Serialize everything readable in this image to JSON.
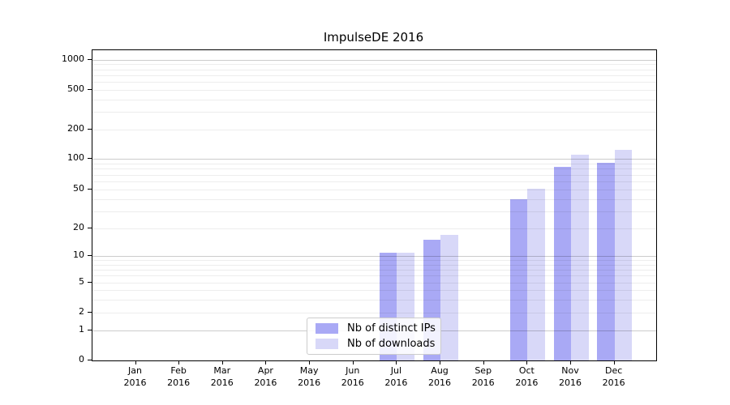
{
  "chart_data": {
    "type": "bar",
    "title": "ImpulseDE 2016",
    "categories": [
      "Jan",
      "Feb",
      "Mar",
      "Apr",
      "May",
      "Jun",
      "Jul",
      "Aug",
      "Sep",
      "Oct",
      "Nov",
      "Dec"
    ],
    "year": "2016",
    "series": [
      {
        "name": "Nb of distinct IPs",
        "color": "#a9a9f5",
        "values": [
          0,
          0,
          0,
          0,
          0,
          0,
          11,
          15,
          0,
          40,
          83,
          92
        ]
      },
      {
        "name": "Nb of downloads",
        "color": "#d8d8f8",
        "values": [
          0,
          0,
          0,
          0,
          0,
          0,
          11,
          17,
          0,
          51,
          110,
          125
        ]
      }
    ],
    "yticks": [
      0,
      1,
      2,
      5,
      10,
      20,
      50,
      100,
      200,
      500,
      1000
    ],
    "ylim": [
      0,
      1400
    ],
    "scale": "linear 0-1, logarithmic above 1",
    "grid": "horizontal; darker lines at 1,10,100,1000; faint minor lines at 2-9 of each decade",
    "legend_position": "inside bottom-center",
    "colors": {
      "axis": "#000000",
      "major_grid": "#cccccc",
      "minor_grid": "#ececec",
      "legend_border": "#cccccc"
    }
  }
}
